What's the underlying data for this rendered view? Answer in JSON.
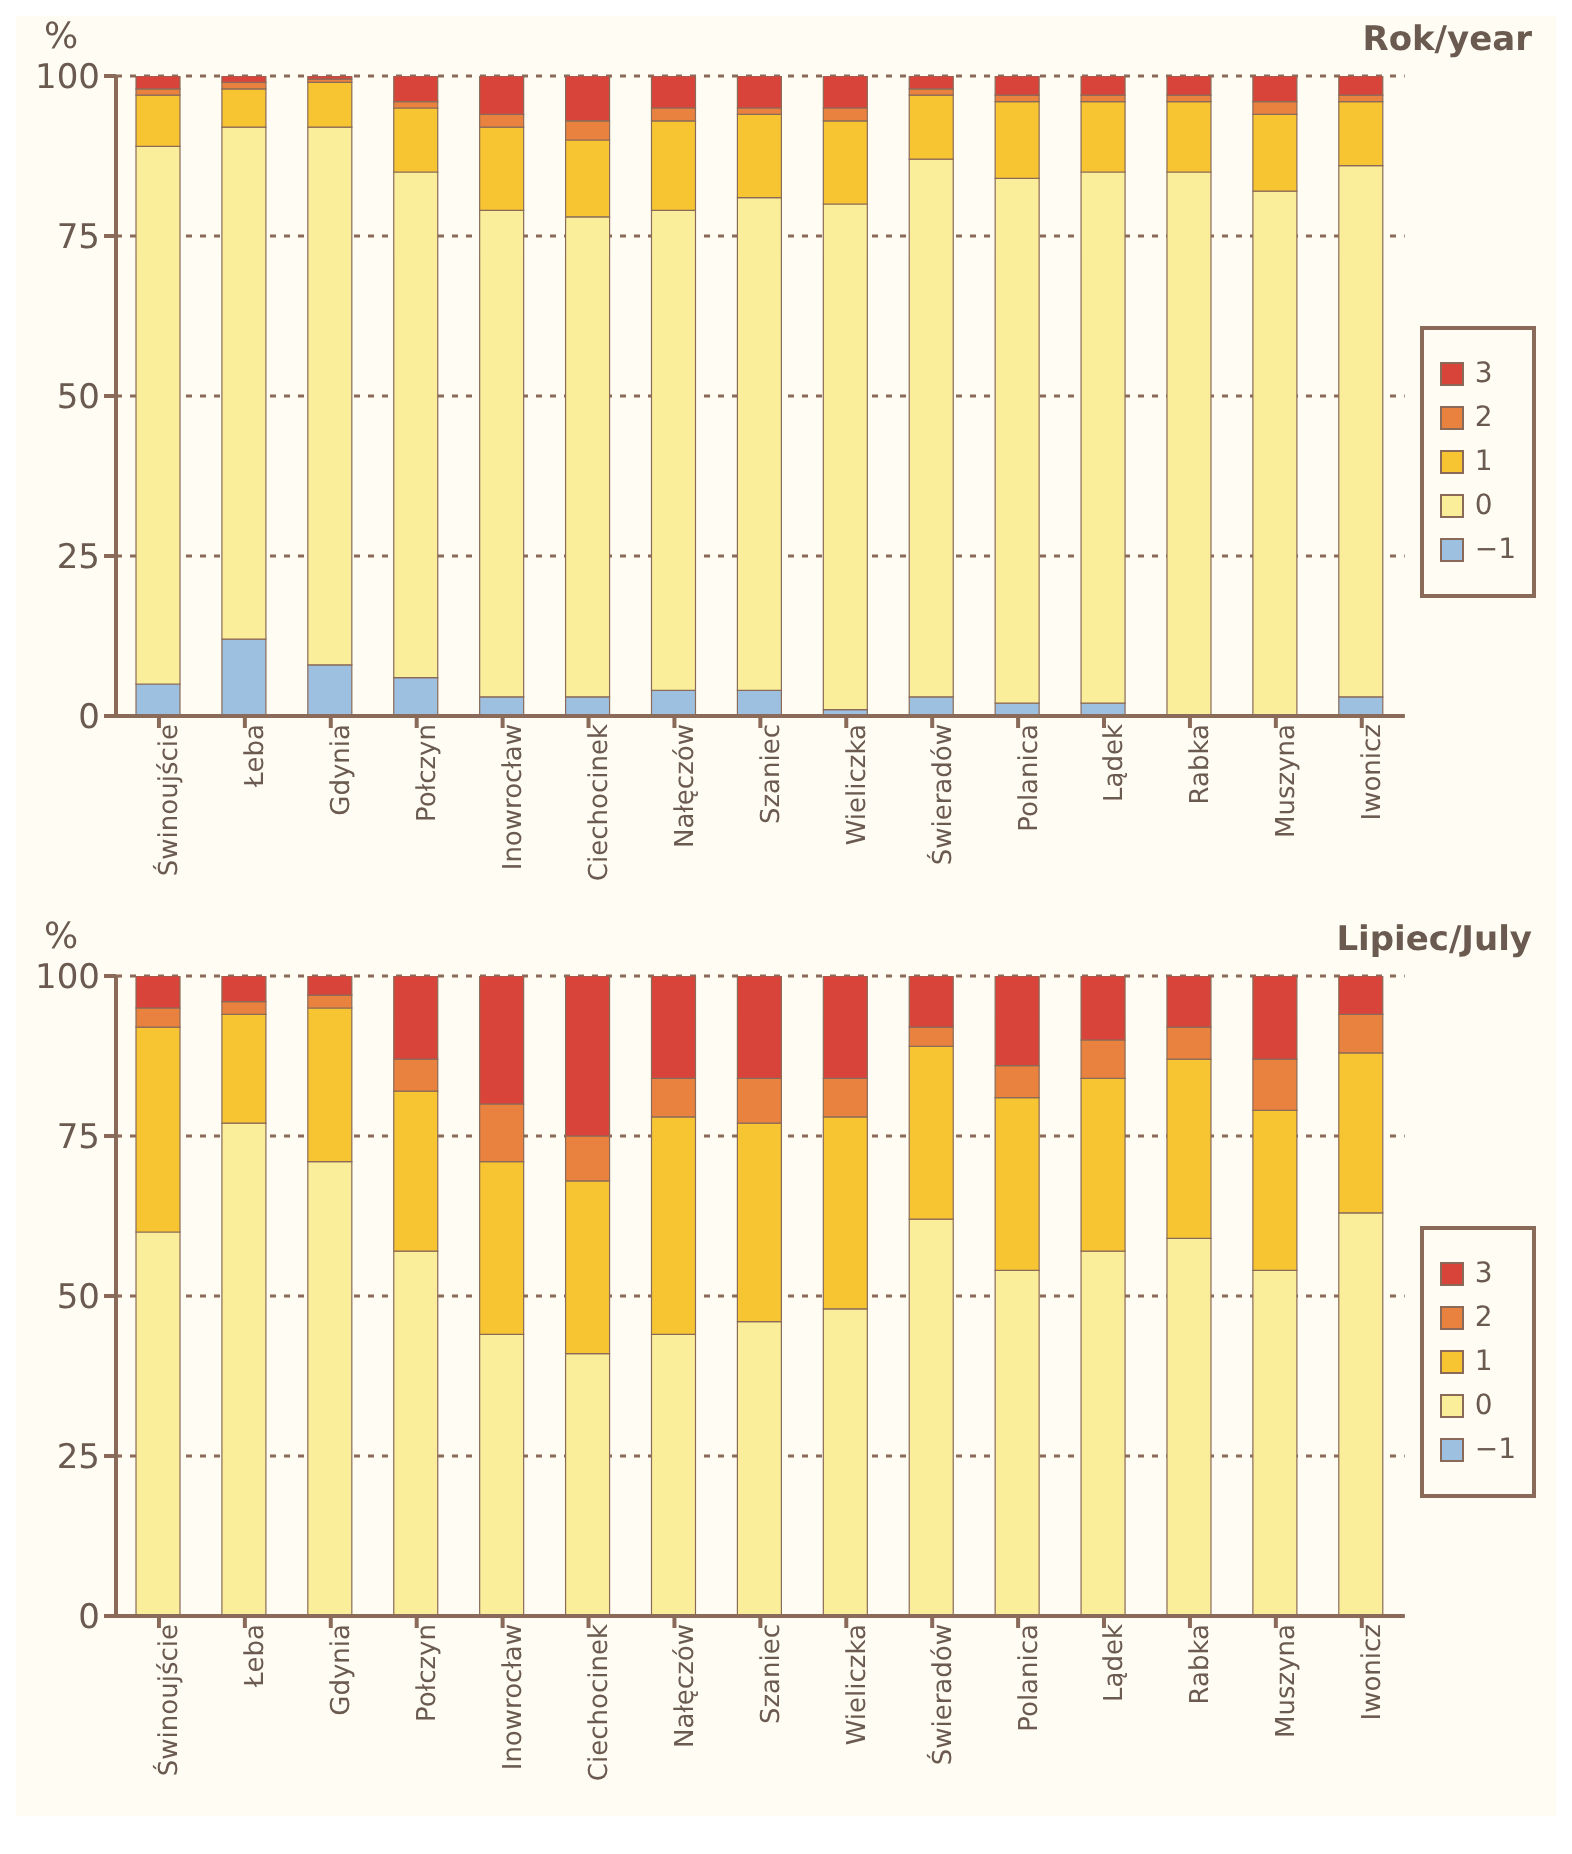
{
  "chart_data": [
    {
      "type": "bar",
      "stacked": true,
      "title": "Rok/year",
      "ylabel": "%",
      "categories": [
        "Świnoujście",
        "Łeba",
        "Gdynia",
        "Połczyn",
        "Inowrocław",
        "Ciechocinek",
        "Nałęczów",
        "Szaniec",
        "Wieliczka",
        "Świeradów",
        "Polanica",
        "Lądek",
        "Rabka",
        "Muszyna",
        "Iwonicz"
      ],
      "ylim": [
        0,
        100
      ],
      "yticks": [
        0,
        25,
        50,
        75,
        100
      ],
      "grid": "y",
      "legend": "right",
      "series": [
        {
          "name": "−1",
          "color": "#9dbfe0",
          "values": [
            5,
            12,
            8,
            6,
            3,
            3,
            4,
            4,
            1,
            3,
            2,
            2,
            0,
            0,
            3
          ]
        },
        {
          "name": "0",
          "color": "#fbee9a",
          "values": [
            84,
            80,
            84,
            79,
            76,
            75,
            75,
            77,
            79,
            84,
            82,
            83,
            85,
            82,
            83
          ]
        },
        {
          "name": "1",
          "color": "#f7c531",
          "values": [
            8,
            6,
            7,
            10,
            13,
            12,
            14,
            13,
            13,
            10,
            12,
            11,
            11,
            12,
            10
          ]
        },
        {
          "name": "2",
          "color": "#e9823e",
          "values": [
            1,
            1,
            0.5,
            1,
            2,
            3,
            2,
            1,
            2,
            1,
            1,
            1,
            1,
            2,
            1
          ]
        },
        {
          "name": "3",
          "color": "#d9443a",
          "values": [
            2,
            1,
            0.5,
            4,
            6,
            7,
            5,
            5,
            5,
            2,
            3,
            3,
            3,
            4,
            3
          ]
        }
      ]
    },
    {
      "type": "bar",
      "stacked": true,
      "title": "Lipiec/July",
      "ylabel": "%",
      "categories": [
        "Świnoujście",
        "Łeba",
        "Gdynia",
        "Połczyn",
        "Inowrocław",
        "Ciechocinek",
        "Nałęczów",
        "Szaniec",
        "Wieliczka",
        "Świeradów",
        "Polanica",
        "Lądek",
        "Rabka",
        "Muszyna",
        "Iwonicz"
      ],
      "ylim": [
        0,
        100
      ],
      "yticks": [
        0,
        25,
        50,
        75,
        100
      ],
      "grid": "y",
      "legend": "right",
      "series": [
        {
          "name": "−1",
          "color": "#9dbfe0",
          "values": [
            0,
            0,
            0,
            0,
            0,
            0,
            0,
            0,
            0,
            0,
            0,
            0,
            0,
            0,
            0
          ]
        },
        {
          "name": "0",
          "color": "#fbee9a",
          "values": [
            60,
            77,
            71,
            57,
            44,
            41,
            44,
            46,
            48,
            62,
            54,
            57,
            59,
            54,
            63
          ]
        },
        {
          "name": "1",
          "color": "#f7c531",
          "values": [
            32,
            17,
            24,
            25,
            27,
            27,
            34,
            31,
            30,
            27,
            27,
            27,
            28,
            25,
            25
          ]
        },
        {
          "name": "2",
          "color": "#e9823e",
          "values": [
            3,
            2,
            2,
            5,
            9,
            7,
            6,
            7,
            6,
            3,
            5,
            6,
            5,
            8,
            6
          ]
        },
        {
          "name": "3",
          "color": "#d9443a",
          "values": [
            5,
            4,
            3,
            13,
            20,
            25,
            16,
            16,
            16,
            8,
            14,
            10,
            8,
            13,
            6
          ]
        }
      ]
    }
  ]
}
